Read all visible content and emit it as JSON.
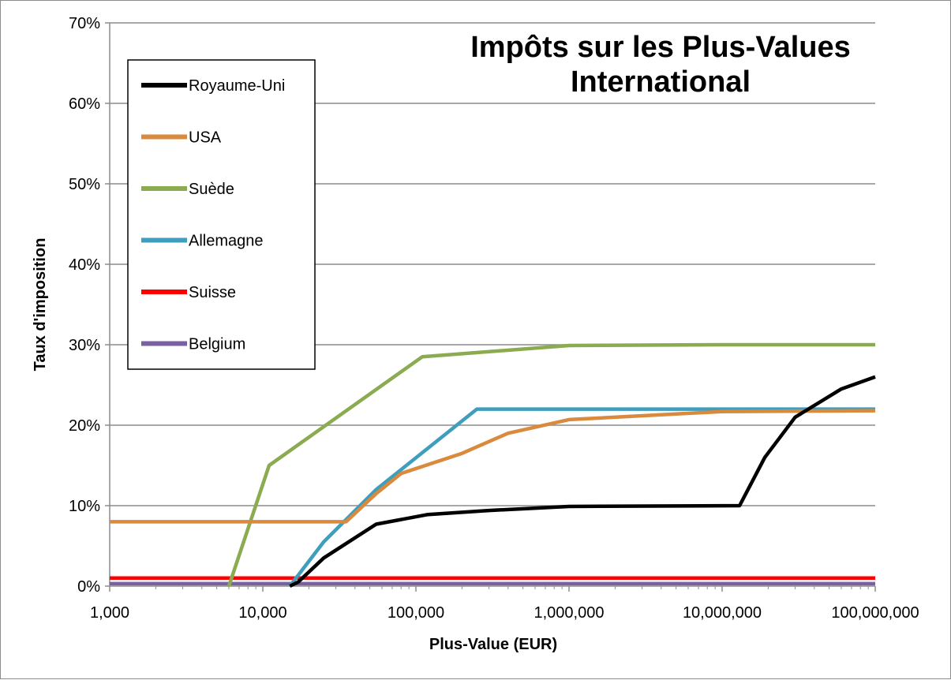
{
  "chart_data": {
    "type": "line",
    "title_lines": [
      "Impôts sur les Plus-Values",
      "International"
    ],
    "xlabel": "Plus-Value (EUR)",
    "ylabel": "Taux d'imposition",
    "xscale": "log",
    "xlim": [
      1000,
      100000000
    ],
    "ylim": [
      0,
      70
    ],
    "x_ticks": [
      1000,
      10000,
      100000,
      1000000,
      10000000,
      100000000
    ],
    "x_tick_labels": [
      "1,000",
      "10,000",
      "100,000",
      "1,000,000",
      "10,000,000",
      "100,000,000"
    ],
    "y_ticks": [
      0,
      10,
      20,
      30,
      40,
      50,
      60,
      70
    ],
    "y_tick_labels": [
      "0%",
      "10%",
      "20%",
      "30%",
      "40%",
      "50%",
      "60%",
      "70%"
    ],
    "grid": "horizontal",
    "legend_position": "top-left",
    "series": [
      {
        "name": "Royaume-Uni",
        "color": "#000000",
        "x": [
          15000,
          17000,
          25000,
          55000,
          120000,
          300000,
          1000000,
          13000000,
          19000000,
          30000000,
          60000000,
          100000000
        ],
        "y": [
          0,
          0.5,
          3.5,
          7.7,
          8.9,
          9.4,
          9.9,
          10.0,
          16.0,
          21.0,
          24.5,
          26.0
        ]
      },
      {
        "name": "USA",
        "color": "#d98a3c",
        "x": [
          1000,
          35000,
          55000,
          80000,
          200000,
          400000,
          1000000,
          10000000,
          100000000
        ],
        "y": [
          8,
          8,
          11.5,
          14,
          16.5,
          19,
          20.7,
          21.7,
          21.8
        ]
      },
      {
        "name": "Suède",
        "color": "#8aab4f",
        "x": [
          6000,
          11000,
          110000,
          1000000,
          10000000,
          100000000
        ],
        "y": [
          0,
          15,
          28.5,
          29.9,
          30,
          30
        ]
      },
      {
        "name": "Allemagne",
        "color": "#3f9dbd",
        "x": [
          15000,
          25000,
          55000,
          250000,
          100000000
        ],
        "y": [
          0,
          5.5,
          12,
          22,
          22
        ]
      },
      {
        "name": "Suisse",
        "color": "#ff0000",
        "x": [
          1000,
          100000000
        ],
        "y": [
          1,
          1
        ]
      },
      {
        "name": "Belgium",
        "color": "#7a5fa3",
        "x": [
          1000,
          100000000
        ],
        "y": [
          0.3,
          0.3
        ]
      }
    ]
  }
}
